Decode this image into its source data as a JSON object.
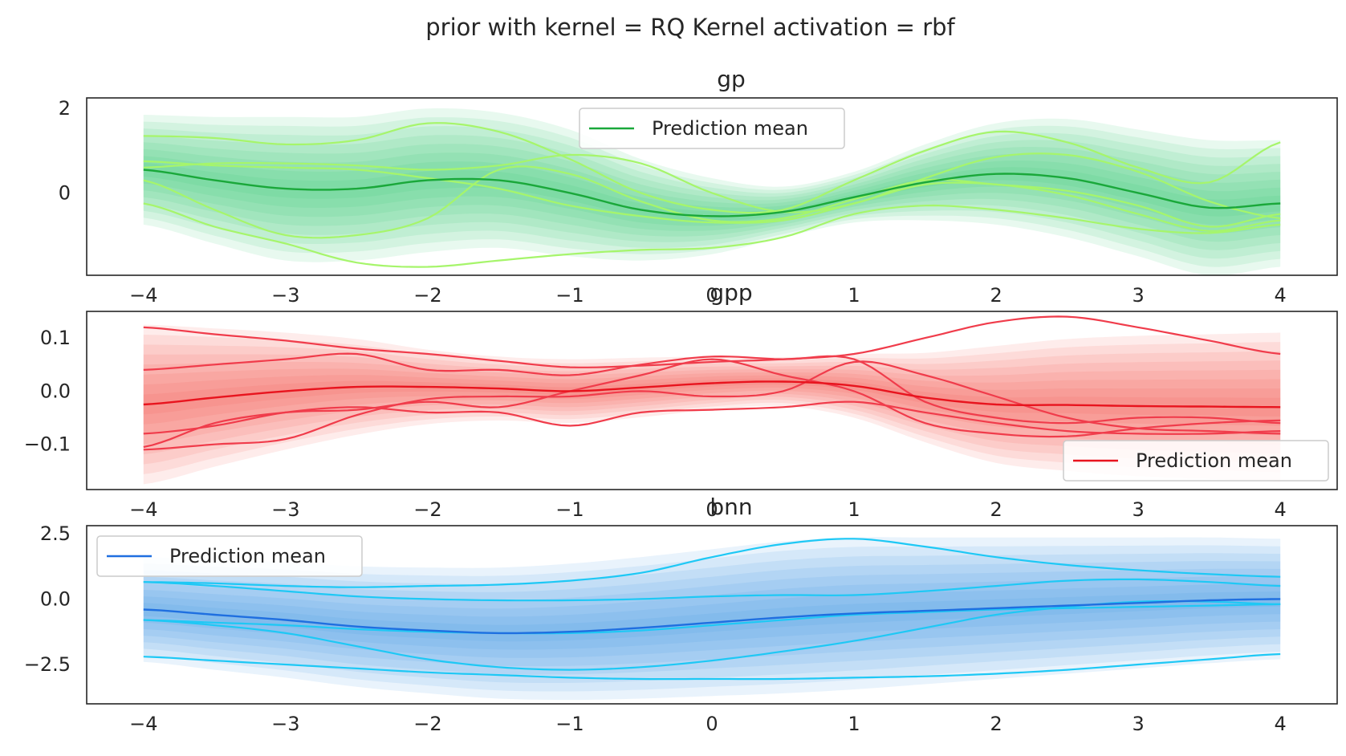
{
  "title": "prior with kernel = RQ Kernel activation = rbf",
  "chart_data": [
    {
      "type": "line",
      "title": "gp",
      "xlabel": "",
      "ylabel": "",
      "xlim": [
        -4.4,
        4.4
      ],
      "ylim": [
        -1.95,
        2.25
      ],
      "x_ticks": [
        -4,
        -3,
        -2,
        -1,
        0,
        1,
        2,
        3,
        4
      ],
      "x_tick_labels": [
        "−4",
        "−3",
        "−2",
        "−1",
        "0",
        "1",
        "2",
        "3",
        "4"
      ],
      "y_ticks": [
        0,
        2
      ],
      "y_tick_labels": [
        "0",
        "2"
      ],
      "legend": {
        "label": "Prediction mean",
        "position": "upper-center"
      },
      "colors": {
        "mean": "#1aa83a",
        "band": "#2ecc71",
        "sample": "#a6f56b"
      },
      "band_levels": [
        2.0,
        1.75,
        1.5,
        1.25,
        1.0,
        0.75,
        0.5,
        0.25
      ],
      "grid": false,
      "x": [
        -4,
        -3.5,
        -3,
        -2.5,
        -2,
        -1.5,
        -1,
        -0.5,
        0,
        0.5,
        1,
        1.5,
        2,
        2.5,
        3,
        3.5,
        4
      ],
      "mean": [
        0.55,
        0.3,
        0.1,
        0.1,
        0.3,
        0.3,
        0.0,
        -0.4,
        -0.55,
        -0.45,
        -0.1,
        0.25,
        0.45,
        0.35,
        0.0,
        -0.35,
        -0.25
      ],
      "std": [
        0.65,
        0.75,
        0.85,
        0.85,
        0.85,
        0.8,
        0.75,
        0.6,
        0.45,
        0.3,
        0.3,
        0.45,
        0.6,
        0.7,
        0.75,
        0.8,
        0.75
      ],
      "samples": [
        [
          1.35,
          1.3,
          1.15,
          1.25,
          1.65,
          1.45,
          0.8,
          0.0,
          -0.4,
          -0.4,
          0.3,
          1.0,
          1.45,
          1.2,
          0.6,
          0.25,
          1.2
        ],
        [
          0.6,
          0.7,
          0.7,
          0.65,
          0.55,
          0.65,
          0.9,
          0.7,
          0.0,
          -0.45,
          -0.25,
          0.35,
          0.85,
          0.9,
          0.5,
          -0.2,
          -0.6
        ],
        [
          0.3,
          -0.4,
          -1.0,
          -1.0,
          -0.6,
          0.55,
          0.45,
          -0.2,
          -0.65,
          -0.6,
          -0.15,
          0.3,
          0.2,
          0.05,
          -0.3,
          -0.8,
          -0.5
        ],
        [
          -0.25,
          -0.8,
          -1.2,
          -1.65,
          -1.75,
          -1.6,
          -1.45,
          -1.35,
          -1.3,
          -1.05,
          -0.5,
          -0.3,
          -0.4,
          -0.6,
          -0.85,
          -0.95,
          -0.75
        ],
        [
          0.75,
          0.65,
          0.6,
          0.55,
          0.35,
          0.1,
          -0.3,
          -0.55,
          -0.7,
          -0.65,
          -0.25,
          0.2,
          0.2,
          -0.05,
          -0.5,
          -0.9,
          -0.65
        ]
      ]
    },
    {
      "type": "line",
      "title": "gpp",
      "xlabel": "",
      "ylabel": "",
      "xlim": [
        -4.4,
        4.4
      ],
      "ylim": [
        -0.185,
        0.15
      ],
      "x_ticks": [
        -4,
        -3,
        -2,
        -1,
        0,
        1,
        2,
        3,
        4
      ],
      "x_tick_labels": [
        "−4",
        "−3",
        "−2",
        "−1",
        "0",
        "1",
        "2",
        "3",
        "4"
      ],
      "y_ticks": [
        -0.1,
        0.0,
        0.1
      ],
      "y_tick_labels": [
        "−0.1",
        "0.0",
        "0.1"
      ],
      "legend": {
        "label": "Prediction mean",
        "position": "lower-right"
      },
      "colors": {
        "mean": "#e8141e",
        "band": "#f2564d",
        "sample": "#f03c4b"
      },
      "band_levels": [
        2.0,
        1.75,
        1.5,
        1.25,
        1.0,
        0.75,
        0.5,
        0.25
      ],
      "grid": false,
      "x": [
        -4,
        -3.5,
        -3,
        -2.5,
        -2,
        -1.5,
        -1,
        -0.5,
        0,
        0.5,
        1,
        1.5,
        2,
        2.5,
        3,
        3.5,
        4
      ],
      "mean": [
        -0.025,
        -0.012,
        0.0,
        0.008,
        0.008,
        0.005,
        0.0,
        0.007,
        0.015,
        0.018,
        0.01,
        -0.012,
        -0.025,
        -0.026,
        -0.028,
        -0.029,
        -0.03
      ],
      "std": [
        0.075,
        0.065,
        0.055,
        0.045,
        0.035,
        0.03,
        0.03,
        0.028,
        0.025,
        0.023,
        0.03,
        0.042,
        0.055,
        0.062,
        0.066,
        0.068,
        0.07
      ],
      "samples": [
        [
          0.12,
          0.107,
          0.095,
          0.08,
          0.07,
          0.057,
          0.045,
          0.048,
          0.055,
          0.06,
          0.07,
          0.1,
          0.13,
          0.14,
          0.12,
          0.095,
          0.07
        ],
        [
          0.04,
          0.05,
          0.06,
          0.07,
          0.04,
          0.04,
          0.03,
          0.05,
          0.065,
          0.06,
          0.06,
          -0.02,
          -0.05,
          -0.06,
          -0.05,
          -0.05,
          -0.06
        ],
        [
          -0.08,
          -0.065,
          -0.04,
          -0.03,
          -0.04,
          -0.04,
          -0.065,
          -0.04,
          -0.035,
          -0.03,
          -0.02,
          -0.04,
          -0.06,
          -0.075,
          -0.08,
          -0.08,
          -0.075
        ],
        [
          -0.105,
          -0.06,
          -0.04,
          -0.035,
          -0.02,
          -0.03,
          0.0,
          0.03,
          0.06,
          0.03,
          0.0,
          -0.06,
          -0.08,
          -0.085,
          -0.07,
          -0.06,
          -0.055
        ],
        [
          -0.11,
          -0.1,
          -0.09,
          -0.045,
          -0.015,
          -0.01,
          -0.01,
          0.0,
          -0.01,
          0.0,
          0.055,
          0.03,
          -0.01,
          -0.05,
          -0.07,
          -0.075,
          -0.08
        ]
      ]
    },
    {
      "type": "line",
      "title": "bnn",
      "xlabel": "",
      "ylabel": "",
      "xlim": [
        -4.4,
        4.4
      ],
      "ylim": [
        -4.0,
        2.8
      ],
      "x_ticks": [
        -4,
        -3,
        -2,
        -1,
        0,
        1,
        2,
        3,
        4
      ],
      "x_tick_labels": [
        "−4",
        "−3",
        "−2",
        "−1",
        "0",
        "1",
        "2",
        "3",
        "4"
      ],
      "y_ticks": [
        -2.5,
        0.0,
        2.5
      ],
      "y_tick_labels": [
        "−2.5",
        "0.0",
        "2.5"
      ],
      "legend": {
        "label": "Prediction mean",
        "position": "upper-left"
      },
      "colors": {
        "mean": "#1f6fe0",
        "band": "#3a8fe0",
        "sample": "#1ec8f5"
      },
      "band_levels": [
        2.0,
        1.75,
        1.5,
        1.25,
        1.0,
        0.75,
        0.5,
        0.25
      ],
      "grid": false,
      "x": [
        -4,
        -3.5,
        -3,
        -2.5,
        -2,
        -1.5,
        -1,
        -0.5,
        0,
        0.5,
        1,
        1.5,
        2,
        2.5,
        3,
        3.5,
        4
      ],
      "mean": [
        -0.4,
        -0.6,
        -0.8,
        -1.05,
        -1.2,
        -1.3,
        -1.25,
        -1.1,
        -0.9,
        -0.7,
        -0.55,
        -0.45,
        -0.35,
        -0.25,
        -0.15,
        -0.05,
        0.0
      ],
      "std": [
        1.0,
        1.05,
        1.1,
        1.15,
        1.2,
        1.25,
        1.3,
        1.35,
        1.4,
        1.45,
        1.45,
        1.4,
        1.35,
        1.3,
        1.25,
        1.2,
        1.15
      ],
      "samples": [
        [
          0.65,
          0.6,
          0.5,
          0.45,
          0.5,
          0.55,
          0.7,
          1.0,
          1.6,
          2.1,
          2.3,
          2.0,
          1.6,
          1.3,
          1.1,
          0.95,
          0.85
        ],
        [
          0.65,
          0.5,
          0.3,
          0.1,
          0.0,
          -0.05,
          -0.05,
          0.0,
          0.1,
          0.15,
          0.15,
          0.3,
          0.5,
          0.7,
          0.75,
          0.65,
          0.5
        ],
        [
          -0.8,
          -1.0,
          -1.3,
          -1.8,
          -2.3,
          -2.6,
          -2.7,
          -2.6,
          -2.35,
          -2.0,
          -1.6,
          -1.1,
          -0.6,
          -0.3,
          -0.1,
          -0.1,
          -0.2
        ],
        [
          -2.2,
          -2.35,
          -2.5,
          -2.65,
          -2.8,
          -2.9,
          -3.0,
          -3.05,
          -3.05,
          -3.05,
          -3.0,
          -2.95,
          -2.85,
          -2.7,
          -2.5,
          -2.3,
          -2.1
        ],
        [
          -0.8,
          -0.9,
          -1.0,
          -1.15,
          -1.25,
          -1.3,
          -1.3,
          -1.2,
          -1.0,
          -0.8,
          -0.6,
          -0.5,
          -0.4,
          -0.35,
          -0.3,
          -0.25,
          -0.2
        ]
      ]
    }
  ]
}
